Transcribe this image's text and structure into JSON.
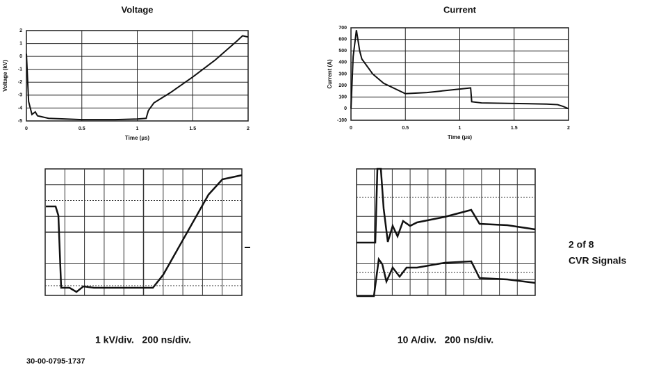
{
  "chart_data": [
    {
      "type": "line",
      "title": "Voltage",
      "xlabel": "Time (µs)",
      "ylabel": "Voltage (kV)",
      "x": [
        0,
        0.02,
        0.05,
        0.08,
        0.1,
        0.2,
        0.5,
        0.8,
        1.0,
        1.08,
        1.1,
        1.15,
        1.3,
        1.5,
        1.7,
        1.9,
        1.95,
        2.0
      ],
      "series": [
        {
          "name": "Voltage",
          "color": "#111111",
          "values": [
            0.2,
            -3.5,
            -4.5,
            -4.3,
            -4.6,
            -4.8,
            -4.9,
            -4.9,
            -4.85,
            -4.8,
            -4.2,
            -3.6,
            -2.8,
            -1.6,
            -0.3,
            1.2,
            1.6,
            1.5
          ]
        }
      ],
      "xlim": [
        0,
        2
      ],
      "xticks": [
        0,
        0.5,
        1,
        1.5,
        2
      ],
      "ylim": [
        -5,
        2
      ],
      "yticks": [
        -5,
        -4,
        -3,
        -2,
        -1,
        0,
        1,
        2
      ],
      "grid": true
    },
    {
      "type": "line",
      "title": "Current",
      "xlabel": "Time (µs)",
      "ylabel": "Current (A)",
      "x": [
        0,
        0.02,
        0.05,
        0.08,
        0.1,
        0.2,
        0.3,
        0.5,
        0.7,
        0.9,
        1.1,
        1.11,
        1.2,
        1.5,
        1.8,
        1.9,
        1.95,
        2.0
      ],
      "series": [
        {
          "name": "Current",
          "color": "#111111",
          "values": [
            0,
            450,
            680,
            500,
            430,
            300,
            220,
            130,
            140,
            160,
            180,
            60,
            50,
            45,
            40,
            35,
            20,
            0
          ]
        }
      ],
      "xlim": [
        0,
        2
      ],
      "xticks": [
        0,
        0.5,
        1,
        1.5,
        2
      ],
      "ylim": [
        -100,
        700
      ],
      "yticks": [
        -100,
        0,
        100,
        200,
        300,
        400,
        500,
        600,
        700
      ],
      "grid": true
    }
  ],
  "scope_captions": [
    "1 kV/div.   200 ns/div.",
    "10 A/div.   200 ns/div."
  ],
  "side_note": [
    "2 of 8",
    "CVR Signals"
  ],
  "figure_id": "30-00-0795-1737"
}
